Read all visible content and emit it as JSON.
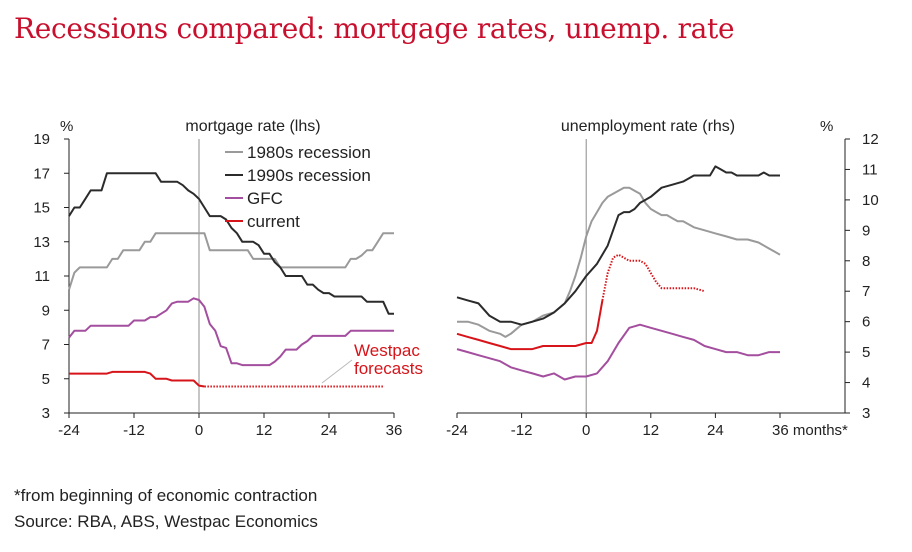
{
  "title": "Recessions compared: mortgage rates, unemp. rate",
  "footnote": "*from beginning of economic contraction",
  "source": "Source: RBA, ABS, Westpac Economics",
  "chart_data": [
    {
      "type": "line",
      "panel_title": "mortgage rate (lhs)",
      "unit": "%",
      "x_ticks": [
        "-24",
        "-12",
        "0",
        "12",
        "24",
        "36"
      ],
      "xlim": [
        -24,
        36
      ],
      "y_ticks": [
        "3",
        "5",
        "7",
        "9",
        "11",
        "13",
        "15",
        "17",
        "19"
      ],
      "ylim": [
        3,
        19
      ],
      "vertical_line_at": 0,
      "annotation": "Westpac\nforecasts",
      "legend": {
        "placement": "top-center",
        "items": [
          "1980s recession",
          "1990s recession",
          "GFC",
          "current"
        ]
      },
      "series": [
        {
          "name": "1980s recession",
          "color": "#9a9a9a",
          "x": [
            -24,
            -23,
            -22,
            -21,
            -20,
            -19,
            -17,
            -16,
            -15,
            -14,
            -13,
            -12,
            -11,
            -10,
            -9,
            -8,
            -7,
            -6,
            -5,
            -4,
            -3,
            -2,
            -1,
            0,
            1,
            2,
            3,
            4,
            5,
            6,
            7,
            8,
            9,
            10,
            11,
            12,
            13,
            14,
            15,
            16,
            17,
            18,
            19,
            20,
            21,
            22,
            23,
            24,
            25,
            26,
            27,
            28,
            29,
            30,
            31,
            32,
            33,
            34,
            35,
            36
          ],
          "y": [
            10.2,
            11.2,
            11.5,
            11.5,
            11.5,
            11.5,
            11.5,
            12,
            12,
            12.5,
            12.5,
            12.5,
            12.5,
            13,
            13,
            13.5,
            13.5,
            13.5,
            13.5,
            13.5,
            13.5,
            13.5,
            13.5,
            13.5,
            13.5,
            12.5,
            12.5,
            12.5,
            12.5,
            12.5,
            12.5,
            12.5,
            12.5,
            12,
            12,
            12,
            12,
            12,
            11.5,
            11.5,
            11.5,
            11.5,
            11.5,
            11.5,
            11.5,
            11.5,
            11.5,
            11.5,
            11.5,
            11.5,
            11.5,
            12,
            12,
            12.2,
            12.5,
            12.5,
            13,
            13.5,
            13.5,
            13.5
          ]
        },
        {
          "name": "1990s recession",
          "color": "#2b2b2b",
          "x": [
            -24,
            -23,
            -22,
            -21,
            -20,
            -19,
            -18,
            -17,
            -16,
            -15,
            -14,
            -13,
            -12,
            -11,
            -10,
            -9,
            -8,
            -7,
            -6,
            -5,
            -4,
            -3,
            -2,
            -1,
            0,
            1,
            2,
            3,
            4,
            5,
            6,
            7,
            8,
            9,
            10,
            11,
            12,
            13,
            14,
            15,
            16,
            17,
            18,
            19,
            20,
            21,
            22,
            23,
            24,
            25,
            26,
            27,
            28,
            29,
            30,
            31,
            32,
            33,
            34,
            35,
            36
          ],
          "y": [
            14.5,
            15,
            15,
            15.5,
            16,
            16,
            16,
            17,
            17,
            17,
            17,
            17,
            17,
            17,
            17,
            17,
            17,
            16.5,
            16.5,
            16.5,
            16.5,
            16.3,
            16,
            15.8,
            15.5,
            15,
            14.5,
            14.5,
            14.5,
            14.3,
            13.8,
            13.5,
            13,
            13,
            13,
            12.8,
            12.3,
            12.3,
            11.8,
            11.5,
            11,
            11,
            11,
            11,
            10.5,
            10.5,
            10.2,
            10,
            10,
            9.8,
            9.8,
            9.8,
            9.8,
            9.8,
            9.8,
            9.5,
            9.5,
            9.5,
            9.5,
            8.8,
            8.8
          ]
        },
        {
          "name": "GFC",
          "color": "#a34e9e",
          "x": [
            -24,
            -23,
            -22,
            -21,
            -20,
            -19,
            -18,
            -17,
            -16,
            -15,
            -14,
            -13,
            -12,
            -11,
            -10,
            -9,
            -8,
            -7,
            -6,
            -5,
            -4,
            -3,
            -2,
            -1,
            0,
            1,
            2,
            3,
            4,
            5,
            6,
            7,
            8,
            9,
            10,
            11,
            12,
            13,
            14,
            15,
            16,
            17,
            18,
            19,
            20,
            21,
            22,
            23,
            24,
            25,
            26,
            27,
            28,
            29,
            30,
            31,
            32,
            33,
            34,
            35,
            36
          ],
          "y": [
            7.4,
            7.8,
            7.8,
            7.8,
            8.1,
            8.1,
            8.1,
            8.1,
            8.1,
            8.1,
            8.1,
            8.1,
            8.4,
            8.4,
            8.4,
            8.6,
            8.6,
            8.8,
            9,
            9.4,
            9.5,
            9.5,
            9.5,
            9.7,
            9.6,
            9.2,
            8.2,
            7.8,
            6.9,
            6.8,
            5.9,
            5.9,
            5.8,
            5.8,
            5.8,
            5.8,
            5.8,
            5.8,
            6,
            6.3,
            6.7,
            6.7,
            6.7,
            7,
            7.2,
            7.5,
            7.5,
            7.5,
            7.5,
            7.5,
            7.5,
            7.5,
            7.8,
            7.8,
            7.8,
            7.8,
            7.8,
            7.8,
            7.8,
            7.8,
            7.8
          ]
        },
        {
          "name": "current",
          "color": "#d7141a",
          "x": [
            -24,
            -23,
            -22,
            -21,
            -20,
            -19,
            -18,
            -17,
            -16,
            -15,
            -14,
            -13,
            -12,
            -11,
            -10,
            -9,
            -8,
            -7,
            -6,
            -5,
            -4,
            -3,
            -2,
            -1,
            0,
            1
          ],
          "y": [
            5.3,
            5.3,
            5.3,
            5.3,
            5.3,
            5.3,
            5.3,
            5.3,
            5.4,
            5.4,
            5.4,
            5.4,
            5.4,
            5.4,
            5.4,
            5.3,
            5,
            5,
            5,
            4.9,
            4.9,
            4.9,
            4.9,
            4.9,
            4.6,
            4.55
          ]
        },
        {
          "name": "current forecast",
          "color": "#d7141a",
          "dotted": true,
          "x": [
            1,
            4,
            8,
            12,
            16,
            20,
            24,
            28,
            32,
            34
          ],
          "y": [
            4.55,
            4.55,
            4.55,
            4.55,
            4.55,
            4.55,
            4.55,
            4.55,
            4.55,
            4.55
          ]
        }
      ]
    },
    {
      "type": "line",
      "panel_title": "unemployment rate (rhs)",
      "unit": "%",
      "x_ticks": [
        "-24",
        "-12",
        "0",
        "12",
        "24",
        "36 months*"
      ],
      "xlim": [
        -24,
        36
      ],
      "y_ticks": [
        "3",
        "4",
        "5",
        "6",
        "7",
        "8",
        "9",
        "10",
        "11",
        "12"
      ],
      "ylim": [
        3,
        12
      ],
      "vertical_line_at": 0,
      "series": [
        {
          "name": "1980s recession",
          "color": "#9a9a9a",
          "x": [
            -24,
            -22,
            -20,
            -18,
            -16,
            -15,
            -14,
            -12,
            -10,
            -8,
            -6,
            -4,
            -3,
            -2,
            -1,
            0,
            1,
            2,
            3,
            4,
            5,
            6,
            7,
            8,
            9,
            10,
            11,
            12,
            13,
            14,
            15,
            16,
            17,
            18,
            20,
            22,
            24,
            26,
            28,
            30,
            32,
            34,
            35,
            36
          ],
          "y": [
            6,
            6,
            5.9,
            5.7,
            5.6,
            5.5,
            5.6,
            5.9,
            6,
            6.2,
            6.3,
            6.6,
            7,
            7.5,
            8.1,
            8.8,
            9.3,
            9.6,
            9.9,
            10.1,
            10.2,
            10.3,
            10.4,
            10.4,
            10.3,
            10.2,
            9.9,
            9.7,
            9.6,
            9.5,
            9.5,
            9.4,
            9.3,
            9.3,
            9.1,
            9,
            8.9,
            8.8,
            8.7,
            8.7,
            8.6,
            8.4,
            8.3,
            8.2
          ]
        },
        {
          "name": "1990s recession",
          "color": "#2b2b2b",
          "x": [
            -24,
            -22,
            -20,
            -18,
            -16,
            -14,
            -12,
            -10,
            -8,
            -6,
            -4,
            -2,
            0,
            2,
            4,
            6,
            7,
            8,
            9,
            10,
            11,
            12,
            14,
            16,
            18,
            20,
            22,
            23,
            24,
            25,
            26,
            27,
            28,
            30,
            32,
            33,
            34,
            36
          ],
          "y": [
            6.8,
            6.7,
            6.6,
            6.2,
            6,
            6,
            5.9,
            6,
            6.1,
            6.3,
            6.6,
            7,
            7.5,
            7.9,
            8.5,
            9.5,
            9.6,
            9.6,
            9.7,
            9.9,
            10,
            10.1,
            10.4,
            10.5,
            10.6,
            10.8,
            10.8,
            10.8,
            11.1,
            11,
            10.9,
            10.9,
            10.8,
            10.8,
            10.8,
            10.9,
            10.8,
            10.8
          ]
        },
        {
          "name": "GFC",
          "color": "#a34e9e",
          "x": [
            -24,
            -22,
            -20,
            -18,
            -16,
            -14,
            -12,
            -10,
            -8,
            -6,
            -4,
            -2,
            0,
            2,
            4,
            6,
            8,
            10,
            12,
            14,
            16,
            18,
            20,
            22,
            24,
            26,
            28,
            30,
            32,
            34,
            36
          ],
          "y": [
            5.1,
            5,
            4.9,
            4.8,
            4.7,
            4.5,
            4.4,
            4.3,
            4.2,
            4.3,
            4.1,
            4.2,
            4.2,
            4.3,
            4.7,
            5.3,
            5.8,
            5.9,
            5.8,
            5.7,
            5.6,
            5.5,
            5.4,
            5.2,
            5.1,
            5,
            5,
            4.9,
            4.9,
            5,
            5
          ]
        },
        {
          "name": "current",
          "color": "#d7141a",
          "x": [
            -24,
            -22,
            -20,
            -18,
            -16,
            -14,
            -12,
            -10,
            -8,
            -6,
            -4,
            -2,
            0,
            1,
            2,
            3
          ],
          "y": [
            5.6,
            5.5,
            5.4,
            5.3,
            5.2,
            5.1,
            5.1,
            5.1,
            5.2,
            5.2,
            5.2,
            5.2,
            5.3,
            5.3,
            5.7,
            6.7
          ]
        },
        {
          "name": "current forecast",
          "color": "#d7141a",
          "dotted": true,
          "x": [
            3,
            4,
            5,
            6,
            7,
            8,
            9,
            10,
            11,
            12,
            13,
            14,
            16,
            18,
            20,
            22
          ],
          "y": [
            6.7,
            7.6,
            8.1,
            8.2,
            8.1,
            8,
            8,
            8,
            7.9,
            7.6,
            7.3,
            7.1,
            7.1,
            7.1,
            7.1,
            7
          ]
        }
      ]
    }
  ]
}
